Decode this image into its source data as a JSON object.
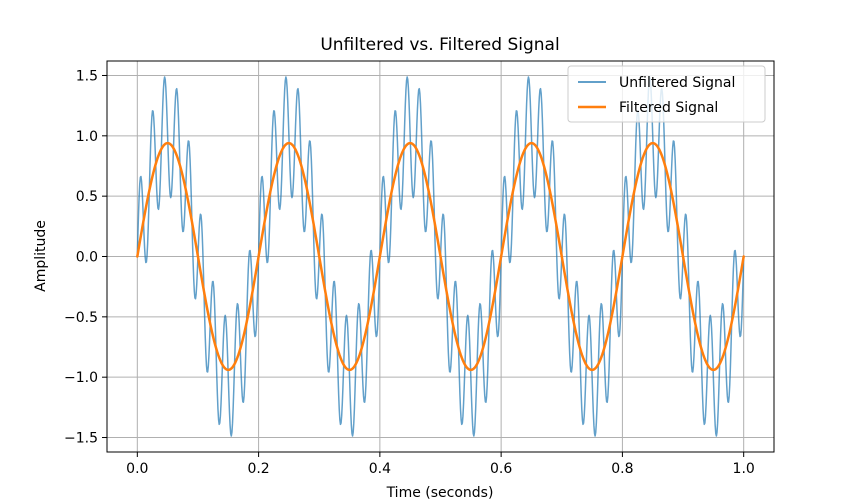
{
  "chart_data": {
    "type": "line",
    "title": "Unfiltered vs. Filtered Signal",
    "xlabel": "Time (seconds)",
    "ylabel": "Amplitude",
    "xlim": [
      -0.05,
      1.05
    ],
    "ylim": [
      -1.62,
      1.62
    ],
    "xticks": [
      0.0,
      0.2,
      0.4,
      0.6,
      0.8,
      1.0
    ],
    "xtick_labels": [
      "0.0",
      "0.2",
      "0.4",
      "0.6",
      "0.8",
      "1.0"
    ],
    "yticks": [
      -1.5,
      -1.0,
      -0.5,
      0.0,
      0.5,
      1.0,
      1.5
    ],
    "ytick_labels": [
      "−1.5",
      "−1.0",
      "−0.5",
      "0.0",
      "0.5",
      "1.0",
      "1.5"
    ],
    "grid": true,
    "legend_position": "top-right",
    "series": [
      {
        "name": "Unfiltered Signal",
        "color": "#1f77b4",
        "style": "thin-dense",
        "base_frequency_hz": 5,
        "base_amplitude": 1.0,
        "noise_frequency_hz": 50,
        "noise_amplitude": 0.5,
        "x_range": [
          0,
          1
        ]
      },
      {
        "name": "Filtered Signal",
        "color": "#ff7f0e",
        "style": "solid",
        "frequency_hz": 5,
        "amplitude": 0.94,
        "x_range": [
          0,
          1
        ]
      }
    ]
  }
}
